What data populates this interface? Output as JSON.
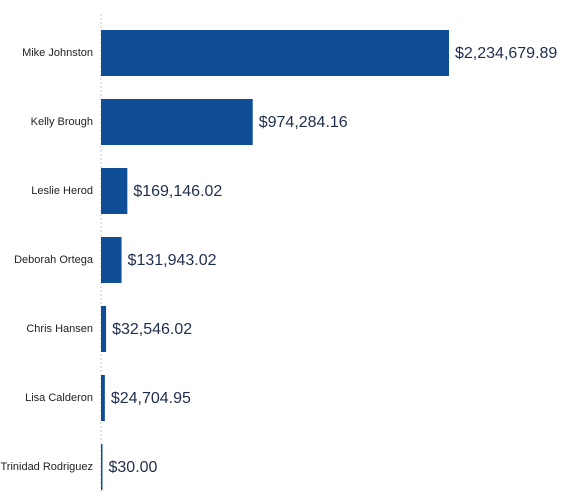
{
  "chart_data": {
    "type": "bar",
    "orientation": "horizontal",
    "title": "",
    "xlabel": "",
    "ylabel": "",
    "categories": [
      "Mike Johnston",
      "Kelly Brough",
      "Leslie Herod",
      "Deborah Ortega",
      "Chris Hansen",
      "Lisa Calderon",
      "Trinidad Rodriguez"
    ],
    "values": [
      2234679.89,
      974284.16,
      169146.02,
      131943.02,
      32546.02,
      24704.95,
      30.0
    ],
    "value_labels": [
      "$2,234,679.89",
      "$974,284.16",
      "$169,146.02",
      "$131,943.02",
      "$32,546.02",
      "$24,704.95",
      "$30.00"
    ],
    "xlim": [
      0,
      2234679.89
    ],
    "grid": false,
    "legend": "none",
    "bar_color": "#0f4e96"
  }
}
